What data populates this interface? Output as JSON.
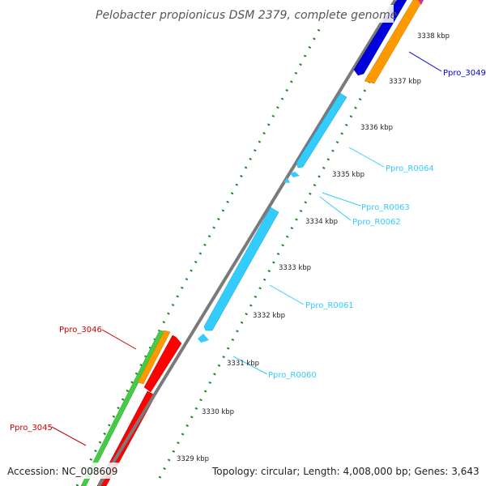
{
  "map": {
    "title": "Pelobacter propionicus DSM 2379, complete genome",
    "accession": "Accession: NC_008609",
    "topology": "Topology: circular; Length: 4,008,000 bp; Genes: 3,643"
  },
  "ticks": [
    "3338 kbp",
    "3337 kbp",
    "3336 kbp",
    "3335 kbp",
    "3334 kbp",
    "3333 kbp",
    "3332 kbp",
    "3331 kbp",
    "3330 kbp",
    "3329 kbp"
  ],
  "genes": [
    {
      "label": "Ppro_3049",
      "color": "#0000cc",
      "kind": "CDS"
    },
    {
      "label": "Ppro_R0064",
      "color": "#33ccff",
      "kind": "rRNA"
    },
    {
      "label": "Ppro_R0063",
      "color": "#33ccff",
      "kind": "tRNA"
    },
    {
      "label": "Ppro_R0062",
      "color": "#33ccff",
      "kind": "tRNA"
    },
    {
      "label": "Ppro_R0061",
      "color": "#33ccff",
      "kind": "rRNA"
    },
    {
      "label": "Ppro_R0060",
      "color": "#33ccff",
      "kind": "tRNA"
    },
    {
      "label": "Ppro_3046",
      "color": "#cc0000",
      "kind": "CDS"
    },
    {
      "label": "Ppro_3045",
      "color": "#cc0000",
      "kind": "CDS"
    }
  ],
  "colors": {
    "backbone": "#888888",
    "cds_forward": "#ff9900",
    "cds_blue": "#0000dd",
    "rna": "#33ccff",
    "green_track": "#44cc44",
    "red_track": "#ff0000",
    "ruler": "#228822"
  }
}
